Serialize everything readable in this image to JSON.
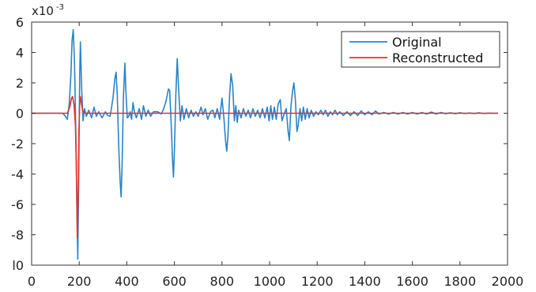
{
  "chart_data": {
    "type": "line",
    "title": "",
    "xlabel": "",
    "ylabel": "",
    "y_scale_label": "x10",
    "y_scale_exponent": "-3",
    "xlim": [
      0,
      2000
    ],
    "ylim": [
      -10,
      6
    ],
    "x_ticks": [
      0,
      200,
      400,
      600,
      800,
      1000,
      1200,
      1400,
      1600,
      1800,
      2000
    ],
    "x_tick_labels": [
      "0",
      "200",
      "400",
      "600",
      "800",
      "1000",
      "1200",
      "1400",
      "1600",
      "1800",
      "2000"
    ],
    "y_ticks": [
      6,
      4,
      2,
      0,
      -2,
      -4,
      -6,
      -8,
      -10
    ],
    "y_tick_labels": [
      "6",
      "4",
      "2",
      "0",
      "-2",
      "-4",
      "-6",
      "-8",
      "l0"
    ],
    "grid": false,
    "legend_position": "top-right",
    "series": [
      {
        "name": "Original",
        "color": "#2a84c6",
        "points": [
          [
            0,
            0
          ],
          [
            130,
            0
          ],
          [
            140,
            -0.15
          ],
          [
            150,
            -0.4
          ],
          [
            158,
            0.6
          ],
          [
            165,
            2.5
          ],
          [
            170,
            4.8
          ],
          [
            175,
            5.5
          ],
          [
            180,
            3.5
          ],
          [
            186,
            -1.5
          ],
          [
            190,
            -6
          ],
          [
            194,
            -9.6
          ],
          [
            198,
            -4
          ],
          [
            202,
            2.5
          ],
          [
            205,
            4.7
          ],
          [
            210,
            1.8
          ],
          [
            216,
            -0.5
          ],
          [
            222,
            0.3
          ],
          [
            230,
            -0.2
          ],
          [
            240,
            0.2
          ],
          [
            252,
            -0.3
          ],
          [
            262,
            0.4
          ],
          [
            272,
            -0.2
          ],
          [
            282,
            0.1
          ],
          [
            296,
            -0.3
          ],
          [
            310,
            0.1
          ],
          [
            320,
            -0.15
          ],
          [
            330,
            -0.2
          ],
          [
            342,
            1.0
          ],
          [
            350,
            2.3
          ],
          [
            355,
            2.7
          ],
          [
            360,
            1.2
          ],
          [
            366,
            -2.2
          ],
          [
            372,
            -4.5
          ],
          [
            376,
            -5.5
          ],
          [
            380,
            -3.5
          ],
          [
            386,
            1.2
          ],
          [
            392,
            3.3
          ],
          [
            396,
            1.5
          ],
          [
            402,
            -0.3
          ],
          [
            408,
            -0.2
          ],
          [
            414,
            0.1
          ],
          [
            420,
            -0.4
          ],
          [
            426,
            0.7
          ],
          [
            432,
            0.1
          ],
          [
            440,
            -0.3
          ],
          [
            452,
            0.3
          ],
          [
            462,
            -0.4
          ],
          [
            470,
            0.5
          ],
          [
            480,
            -0.2
          ],
          [
            490,
            0.2
          ],
          [
            500,
            -0.2
          ],
          [
            512,
            0.1
          ],
          [
            530,
            0.1
          ],
          [
            545,
            -0.05
          ],
          [
            555,
            0.3
          ],
          [
            565,
            0.8
          ],
          [
            575,
            1.6
          ],
          [
            580,
            1.5
          ],
          [
            586,
            -0.5
          ],
          [
            592,
            -3
          ],
          [
            596,
            -4.2
          ],
          [
            600,
            -2.5
          ],
          [
            606,
            1.2
          ],
          [
            612,
            3.6
          ],
          [
            618,
            1.5
          ],
          [
            625,
            -0.5
          ],
          [
            632,
            0.5
          ],
          [
            640,
            -0.4
          ],
          [
            650,
            0.3
          ],
          [
            660,
            -0.3
          ],
          [
            670,
            0.2
          ],
          [
            680,
            -0.2
          ],
          [
            690,
            0.1
          ],
          [
            700,
            -0.2
          ],
          [
            712,
            0.4
          ],
          [
            720,
            -0.1
          ],
          [
            730,
            0.3
          ],
          [
            740,
            -0.4
          ],
          [
            752,
            0.1
          ],
          [
            762,
            0.2
          ],
          [
            770,
            -0.3
          ],
          [
            780,
            0.3
          ],
          [
            790,
            -0.4
          ],
          [
            800,
            1.0
          ],
          [
            808,
            -0.3
          ],
          [
            815,
            -1.8
          ],
          [
            820,
            -2.5
          ],
          [
            825,
            -1.5
          ],
          [
            832,
            1.2
          ],
          [
            838,
            2.6
          ],
          [
            845,
            1.8
          ],
          [
            852,
            -0.5
          ],
          [
            858,
            0.5
          ],
          [
            864,
            -0.6
          ],
          [
            870,
            0.2
          ],
          [
            880,
            -0.3
          ],
          [
            890,
            0.3
          ],
          [
            900,
            -0.2
          ],
          [
            910,
            0.2
          ],
          [
            920,
            -0.3
          ],
          [
            930,
            0.3
          ],
          [
            940,
            -0.2
          ],
          [
            950,
            0.2
          ],
          [
            960,
            -0.3
          ],
          [
            970,
            0.3
          ],
          [
            980,
            -0.3
          ],
          [
            990,
            0.4
          ],
          [
            998,
            -0.5
          ],
          [
            1005,
            0.5
          ],
          [
            1012,
            -0.4
          ],
          [
            1020,
            0.4
          ],
          [
            1028,
            -0.4
          ],
          [
            1036,
            0.6
          ],
          [
            1045,
            0.9
          ],
          [
            1052,
            -0.5
          ],
          [
            1060,
            -0.1
          ],
          [
            1070,
            0.3
          ],
          [
            1078,
            -1.2
          ],
          [
            1083,
            -1.8
          ],
          [
            1090,
            0.5
          ],
          [
            1097,
            1.5
          ],
          [
            1102,
            2.0
          ],
          [
            1108,
            1.0
          ],
          [
            1115,
            -1.2
          ],
          [
            1120,
            -0.8
          ],
          [
            1128,
            0.3
          ],
          [
            1135,
            -0.5
          ],
          [
            1142,
            0.4
          ],
          [
            1150,
            -0.4
          ],
          [
            1158,
            0.3
          ],
          [
            1166,
            -0.3
          ],
          [
            1175,
            0.2
          ],
          [
            1185,
            -0.2
          ],
          [
            1195,
            0.1
          ],
          [
            1205,
            -0.1
          ],
          [
            1215,
            0.2
          ],
          [
            1225,
            -0.1
          ],
          [
            1235,
            0.2
          ],
          [
            1245,
            -0.2
          ],
          [
            1255,
            0.1
          ],
          [
            1265,
            -0.1
          ],
          [
            1275,
            0.2
          ],
          [
            1285,
            -0.1
          ],
          [
            1295,
            0.1
          ],
          [
            1310,
            -0.15
          ],
          [
            1325,
            0.1
          ],
          [
            1340,
            -0.15
          ],
          [
            1355,
            0.1
          ],
          [
            1370,
            -0.15
          ],
          [
            1385,
            0.15
          ],
          [
            1400,
            -0.1
          ],
          [
            1415,
            0.1
          ],
          [
            1430,
            -0.1
          ],
          [
            1445,
            0.15
          ],
          [
            1460,
            -0.05
          ],
          [
            1480,
            0.05
          ],
          [
            1500,
            -0.05
          ],
          [
            1520,
            0.05
          ],
          [
            1540,
            -0.05
          ],
          [
            1560,
            0.05
          ],
          [
            1580,
            -0.05
          ],
          [
            1600,
            0.05
          ],
          [
            1620,
            -0.05
          ],
          [
            1640,
            0.05
          ],
          [
            1660,
            -0.05
          ],
          [
            1680,
            0.08
          ],
          [
            1700,
            -0.05
          ],
          [
            1720,
            0.05
          ],
          [
            1740,
            -0.03
          ],
          [
            1760,
            0.03
          ],
          [
            1780,
            -0.03
          ],
          [
            1800,
            0.03
          ],
          [
            1820,
            -0.02
          ],
          [
            1840,
            0.02
          ],
          [
            1860,
            -0.02
          ],
          [
            1880,
            0.03
          ],
          [
            1900,
            -0.02
          ],
          [
            1920,
            0.01
          ],
          [
            1940,
            0
          ],
          [
            1960,
            0
          ]
        ]
      },
      {
        "name": "Reconstructed",
        "color": "#e8312b",
        "points": [
          [
            0,
            0
          ],
          [
            130,
            0
          ],
          [
            150,
            0
          ],
          [
            160,
            0.4
          ],
          [
            168,
            1.0
          ],
          [
            172,
            1.1
          ],
          [
            178,
            0.6
          ],
          [
            184,
            -0.8
          ],
          [
            188,
            -3.5
          ],
          [
            192,
            -8.2
          ],
          [
            196,
            -5.0
          ],
          [
            199,
            -1.0
          ],
          [
            202,
            0.6
          ],
          [
            205,
            1.1
          ],
          [
            209,
            0.7
          ],
          [
            214,
            0.2
          ],
          [
            220,
            0.05
          ],
          [
            230,
            0
          ],
          [
            300,
            0
          ],
          [
            400,
            0
          ],
          [
            600,
            0
          ],
          [
            800,
            0
          ],
          [
            1000,
            0
          ],
          [
            1200,
            0
          ],
          [
            1400,
            0
          ],
          [
            1600,
            0
          ],
          [
            1800,
            0
          ],
          [
            1960,
            0
          ]
        ]
      }
    ]
  }
}
